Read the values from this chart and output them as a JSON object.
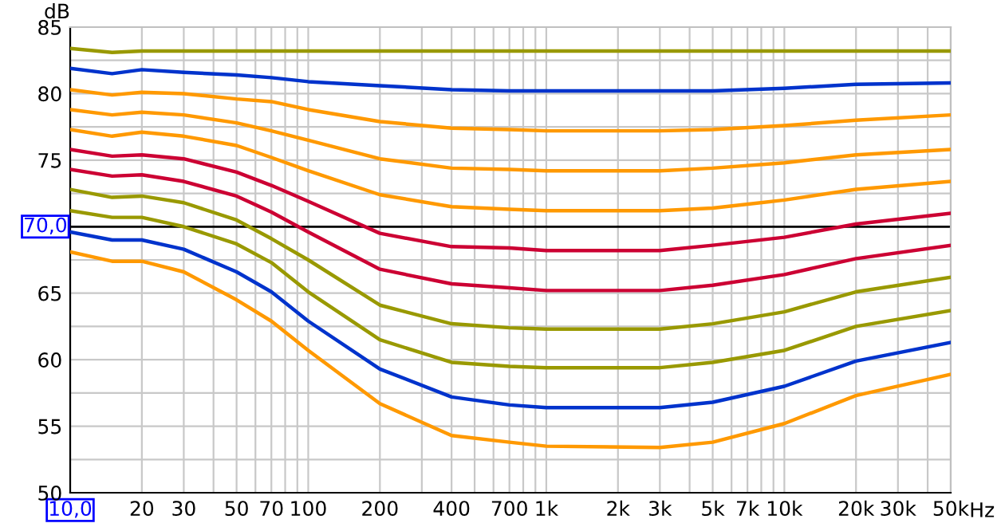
{
  "chart_data": {
    "type": "line",
    "ylabel": "dB",
    "log": "x",
    "grid": true,
    "legend": false,
    "marker": "none",
    "line_style": "solid",
    "x": [
      10,
      15,
      20,
      30,
      50,
      70,
      100,
      200,
      400,
      700,
      1000,
      3000,
      5000,
      10000,
      20000,
      50000
    ],
    "xlim": [
      10,
      50000
    ],
    "ylim": [
      50,
      85
    ],
    "xticks": [
      {
        "value": 10,
        "label": "10,0"
      },
      20,
      30,
      {
        "value": 40,
        "label": null
      },
      50,
      {
        "value": 60,
        "label": null
      },
      70,
      {
        "value": 80,
        "label": null
      },
      {
        "value": 90,
        "label": null
      },
      100,
      200,
      {
        "value": 300,
        "label": null
      },
      400,
      {
        "value": 500,
        "label": null
      },
      {
        "value": 600,
        "label": null
      },
      700,
      {
        "value": 800,
        "label": null
      },
      {
        "value": 900,
        "label": null
      },
      {
        "value": 1000,
        "label": "1k"
      },
      {
        "value": 2000,
        "label": "2k"
      },
      {
        "value": 3000,
        "label": "3k"
      },
      {
        "value": 4000,
        "label": null
      },
      {
        "value": 5000,
        "label": "5k"
      },
      {
        "value": 6000,
        "label": null
      },
      {
        "value": 7000,
        "label": "7k"
      },
      {
        "value": 8000,
        "label": null
      },
      {
        "value": 9000,
        "label": null
      },
      {
        "value": 10000,
        "label": "10k"
      },
      {
        "value": 20000,
        "label": "20k"
      },
      {
        "value": 30000,
        "label": "30k"
      },
      {
        "value": 40000,
        "label": null
      },
      {
        "value": 50000,
        "label": "50k"
      }
    ],
    "xlabel": "Hz",
    "yticks": [
      50,
      {
        "value": 52.5,
        "label": null
      },
      55,
      {
        "value": 57.5,
        "label": null
      },
      60,
      {
        "value": 62.5,
        "label": null
      },
      65,
      {
        "value": 67.5,
        "label": null
      },
      {
        "value": 70,
        "label": null
      },
      {
        "value": 72.5,
        "label": null
      },
      75,
      {
        "value": 77.5,
        "label": null
      },
      80,
      {
        "value": 82.5,
        "label": null
      },
      85
    ],
    "ref_lines": [
      {
        "axis": "y",
        "value": 70,
        "label": "70,0",
        "color": "#000000"
      }
    ],
    "series": [
      {
        "color": "#999900",
        "values": [
          83.4,
          83.1,
          83.2,
          83.2,
          83.2,
          83.2,
          83.2,
          83.2,
          83.2,
          83.2,
          83.2,
          83.2,
          83.2,
          83.2,
          83.2,
          83.2
        ]
      },
      {
        "color": "#0033cc",
        "values": [
          81.9,
          81.5,
          81.8,
          81.6,
          81.4,
          81.2,
          80.9,
          80.6,
          80.3,
          80.2,
          80.2,
          80.2,
          80.2,
          80.4,
          80.7,
          80.8
        ]
      },
      {
        "color": "#ff9900",
        "values": [
          80.3,
          79.9,
          80.1,
          80.0,
          79.6,
          79.4,
          78.8,
          77.9,
          77.4,
          77.3,
          77.2,
          77.2,
          77.3,
          77.6,
          78.0,
          78.4
        ]
      },
      {
        "color": "#ff9900",
        "values": [
          78.8,
          78.4,
          78.6,
          78.4,
          77.8,
          77.2,
          76.5,
          75.1,
          74.4,
          74.3,
          74.2,
          74.2,
          74.4,
          74.8,
          75.4,
          75.8
        ]
      },
      {
        "color": "#ff9900",
        "values": [
          77.3,
          76.8,
          77.1,
          76.8,
          76.1,
          75.2,
          74.2,
          72.4,
          71.5,
          71.3,
          71.2,
          71.2,
          71.4,
          72.0,
          72.8,
          73.4
        ]
      },
      {
        "color": "#cc0033",
        "values": [
          75.8,
          75.3,
          75.4,
          75.1,
          74.1,
          73.1,
          71.9,
          69.5,
          68.5,
          68.4,
          68.2,
          68.2,
          68.6,
          69.2,
          70.2,
          71.0
        ]
      },
      {
        "color": "#cc0033",
        "values": [
          74.3,
          73.8,
          73.9,
          73.4,
          72.3,
          71.1,
          69.6,
          66.8,
          65.7,
          65.4,
          65.2,
          65.2,
          65.6,
          66.4,
          67.6,
          68.6
        ]
      },
      {
        "color": "#999900",
        "values": [
          72.8,
          72.2,
          72.3,
          71.8,
          70.5,
          69.1,
          67.5,
          64.1,
          62.7,
          62.4,
          62.3,
          62.3,
          62.7,
          63.6,
          65.1,
          66.2
        ]
      },
      {
        "color": "#999900",
        "values": [
          71.2,
          70.7,
          70.7,
          70.0,
          68.7,
          67.3,
          65.1,
          61.5,
          59.8,
          59.5,
          59.4,
          59.4,
          59.8,
          60.7,
          62.5,
          63.7
        ]
      },
      {
        "color": "#0033cc",
        "values": [
          69.6,
          69.0,
          69.0,
          68.3,
          66.6,
          65.1,
          62.9,
          59.3,
          57.2,
          56.6,
          56.4,
          56.4,
          56.8,
          58.0,
          59.9,
          61.3
        ]
      },
      {
        "color": "#ff9900",
        "values": [
          68.1,
          67.4,
          67.4,
          66.6,
          64.5,
          62.9,
          60.7,
          56.7,
          54.3,
          53.8,
          53.5,
          53.4,
          53.8,
          55.2,
          57.3,
          58.9
        ]
      }
    ]
  }
}
